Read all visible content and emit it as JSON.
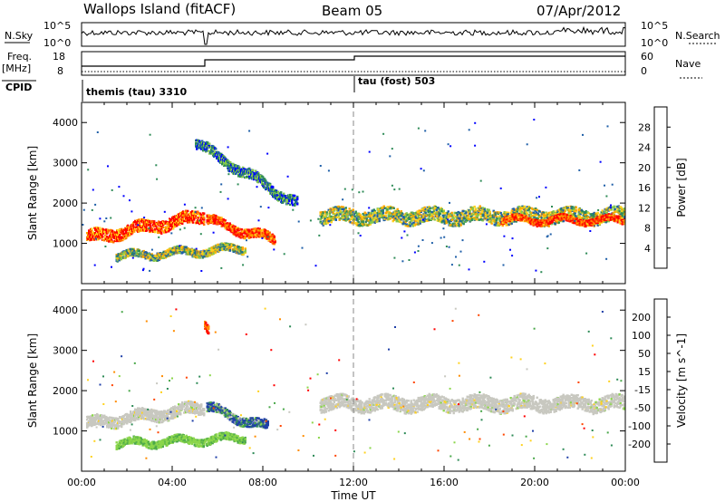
{
  "header": {
    "station": "Wallops Island (fitACF)",
    "beam": "Beam 05",
    "date": "07/Apr/2012"
  },
  "strip_panel": {
    "nsky_label": "N.Sky",
    "nsearch_label": "N.Search",
    "nsky_ticks": [
      "10^5",
      "10^0"
    ],
    "nsearch_ticks": [
      "10^5",
      "10^0"
    ],
    "freq_label": "Freq.",
    "freq_unit": "[MHz]",
    "freq_ticks": [
      "18",
      "8"
    ],
    "nave_label": "Nave",
    "nave_ticks": [
      "60",
      "0"
    ],
    "cpid_label": "CPID",
    "cpid_segments": [
      {
        "start_h": 0,
        "text": "themis (tau) 3310"
      },
      {
        "start_h": 12,
        "text": "tau (fost) 503"
      }
    ]
  },
  "chart_data": [
    {
      "type": "heatmap",
      "title": "",
      "ylabel": "Slant Range [km]",
      "xlabel": "",
      "x_range_h": [
        0,
        24
      ],
      "ylim": [
        0,
        4500
      ],
      "yticks": [
        1000,
        2000,
        3000,
        4000
      ],
      "colorbar": {
        "label": "Power [dB]",
        "ticks": [
          "28",
          "24",
          "20",
          "16",
          "12",
          "8",
          "4"
        ],
        "colors": [
          "#ff0000",
          "#ff6a00",
          "#ffa500",
          "#ffd21e",
          "#84c84e",
          "#2e8b57",
          "#1f5fa8",
          "#0000ff"
        ]
      },
      "scatter_regions_km": [
        {
          "t": [
            0.2,
            5.4
          ],
          "r_center": [
            1150,
            1700
          ],
          "width": 300,
          "level": "high"
        },
        {
          "t": [
            1.5,
            7.2
          ],
          "r_center": [
            700,
            900
          ],
          "width": 180,
          "level": "mid"
        },
        {
          "t": [
            5.5,
            8.5
          ],
          "r_center": [
            1600,
            1100
          ],
          "width": 220,
          "level": "high"
        },
        {
          "t": [
            5.0,
            9.5
          ],
          "r_center": [
            3500,
            2000
          ],
          "width": 250,
          "level": "low"
        },
        {
          "t": [
            10.5,
            24
          ],
          "r_center": [
            1700,
            1700
          ],
          "width": 350,
          "level": "mid"
        },
        {
          "t": [
            18.5,
            24
          ],
          "r_center": [
            1600,
            1600
          ],
          "width": 150,
          "level": "high"
        }
      ]
    },
    {
      "type": "heatmap",
      "title": "",
      "ylabel": "Slant Range [km]",
      "xlabel": "Time UT",
      "x_range_h": [
        0,
        24
      ],
      "ylim": [
        0,
        4500
      ],
      "yticks": [
        1000,
        2000,
        3000,
        4000
      ],
      "xticks": [
        "00:00",
        "04:00",
        "08:00",
        "12:00",
        "16:00",
        "20:00",
        "00:00"
      ],
      "colorbar": {
        "label": "Velocity [m s^-1]",
        "ticks": [
          "200",
          "100",
          "50",
          "15",
          "-15",
          "-50",
          "-100",
          "-200"
        ],
        "colors": [
          "#1f3fa8",
          "#2e8b57",
          "#4aa84a",
          "#8bd64b",
          "#c8c8c0",
          "#ffd21e",
          "#ff8c00",
          "#ff4500",
          "#ff0000"
        ]
      },
      "scatter_regions_km": [
        {
          "t": [
            0.2,
            5.4
          ],
          "r_center": [
            1200,
            1600
          ],
          "width": 280,
          "level": "ground"
        },
        {
          "t": [
            1.5,
            7.2
          ],
          "r_center": [
            700,
            850
          ],
          "width": 180,
          "level": "positive"
        },
        {
          "t": [
            5.5,
            8.2
          ],
          "r_center": [
            1600,
            1100
          ],
          "width": 220,
          "level": "strong-positive"
        },
        {
          "t": [
            5.4,
            5.6
          ],
          "r_center": [
            3600,
            3400
          ],
          "width": 200,
          "level": "strong-negative"
        },
        {
          "t": [
            10.5,
            24
          ],
          "r_center": [
            1700,
            1700
          ],
          "width": 350,
          "level": "ground"
        }
      ]
    }
  ]
}
